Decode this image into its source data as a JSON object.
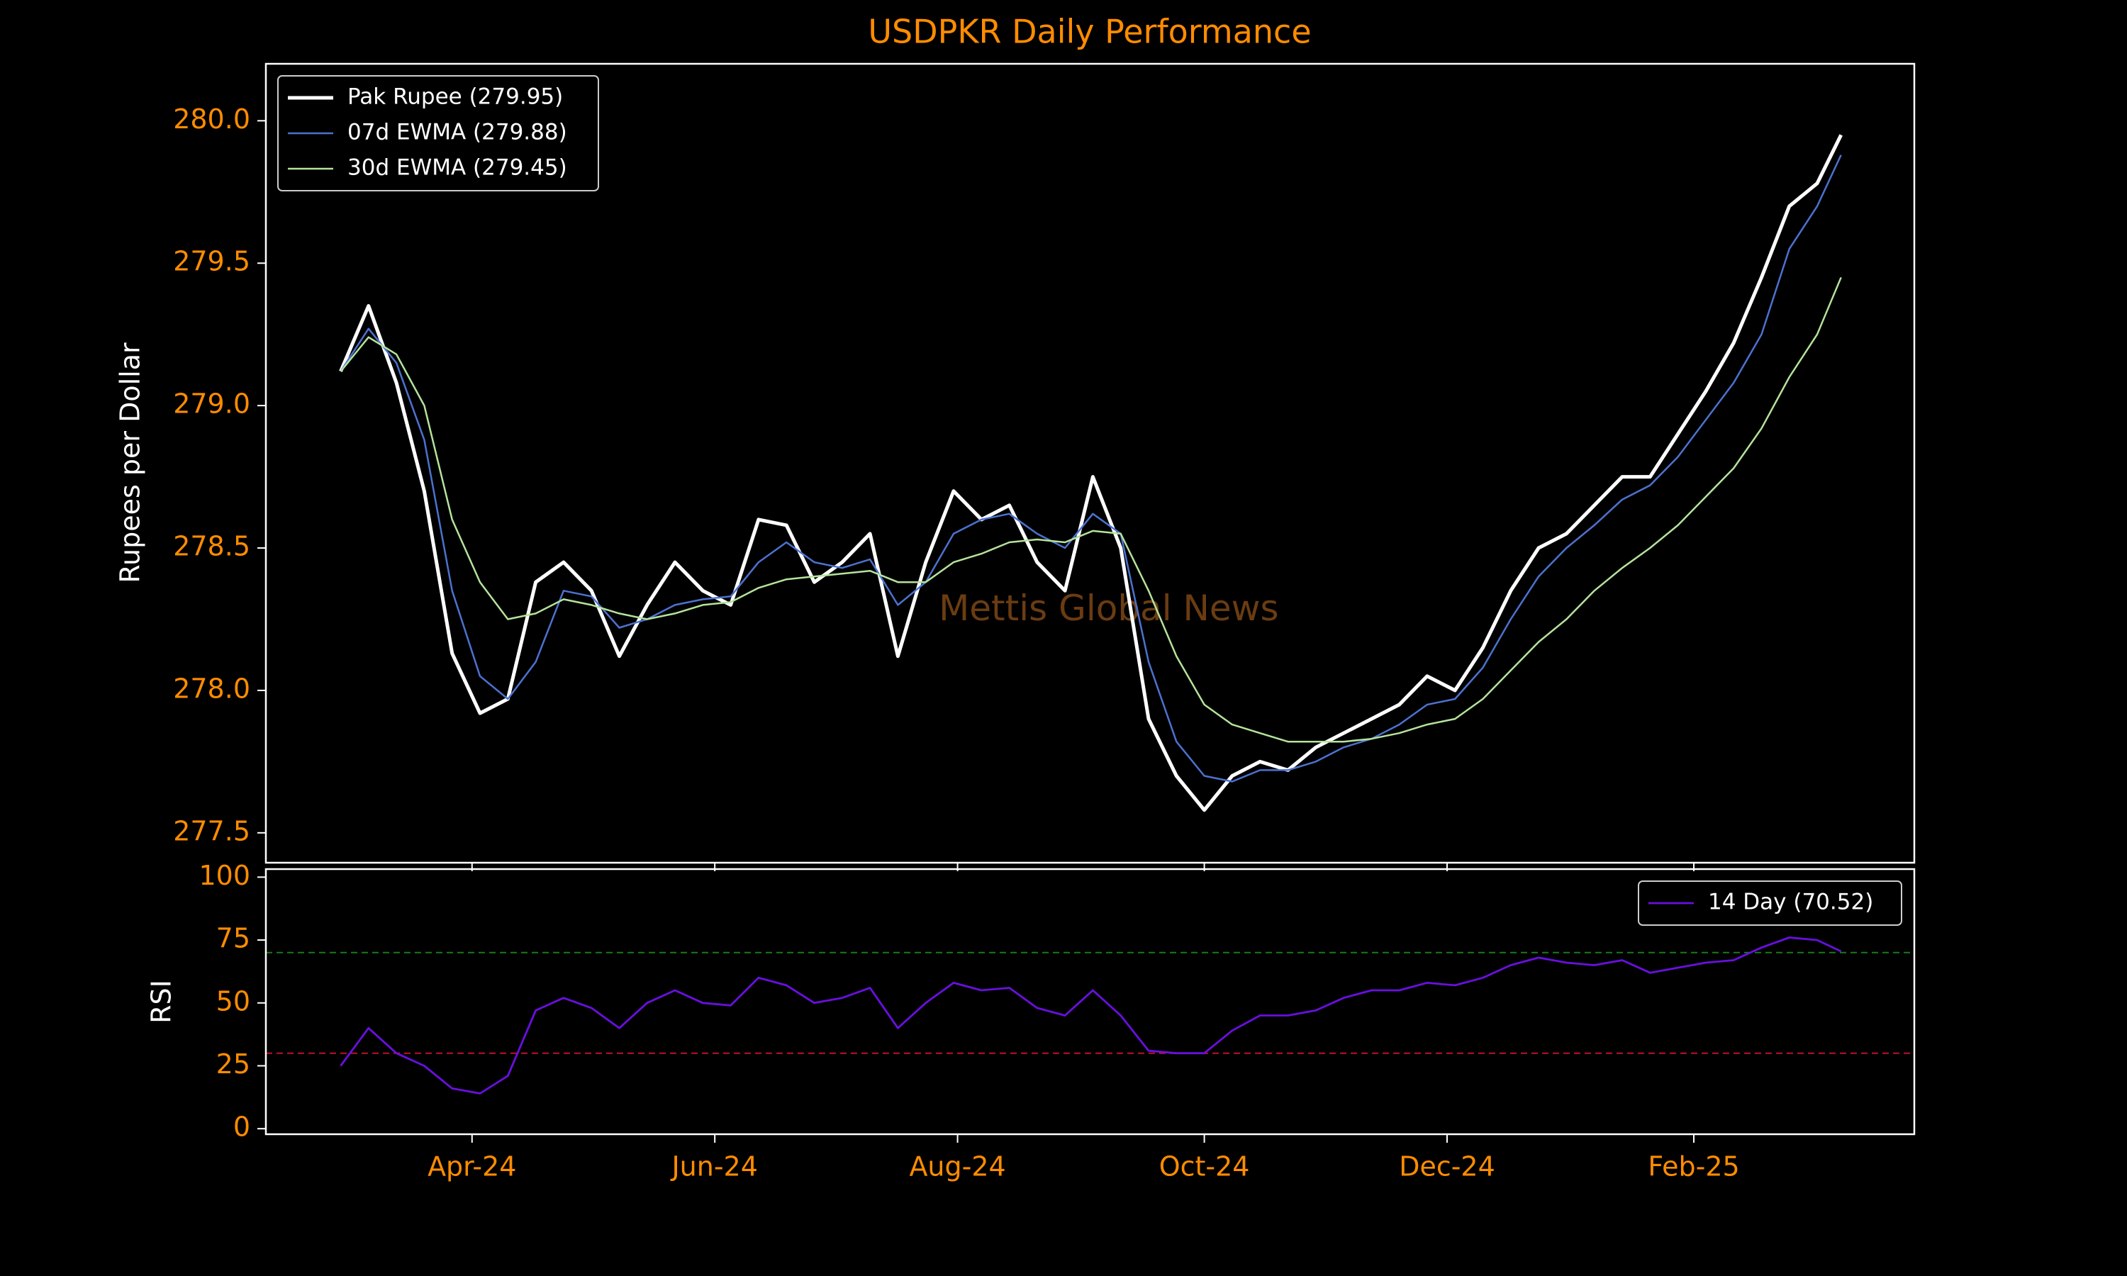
{
  "chart_data": [
    {
      "type": "line",
      "title": "USDPKR Daily Performance",
      "y_label": "Rupees per Dollar",
      "watermark": "Mettis Global News",
      "x": [
        27,
        34,
        41,
        48,
        55,
        62,
        69,
        76,
        83,
        90,
        97,
        104,
        111,
        118,
        125,
        132,
        139,
        146,
        153,
        160,
        167,
        174,
        181,
        188,
        195,
        202,
        209,
        216,
        223,
        230,
        237,
        244,
        251,
        258,
        265,
        272,
        279,
        286,
        293,
        300,
        307,
        314,
        321,
        328,
        335,
        342,
        349,
        356,
        363,
        370,
        377,
        384,
        391,
        398,
        404
      ],
      "xlim": [
        8.2,
        422.4
      ],
      "ylim": [
        277.395,
        280.2
      ],
      "yticks": [
        277.5,
        {
          "value": 278.0,
          "label": "278.0"
        },
        278.5,
        {
          "value": 279.0,
          "label": "279.0"
        },
        279.5,
        {
          "value": 280.0,
          "label": "280.0"
        }
      ],
      "legend": "upper left",
      "series": [
        {
          "name": "Pak Rupee (279.95)",
          "color": "#ffffff",
          "width": 5,
          "values": [
            279.12,
            279.35,
            279.08,
            278.7,
            278.13,
            277.92,
            277.97,
            278.38,
            278.45,
            278.35,
            278.12,
            278.3,
            278.45,
            278.35,
            278.3,
            278.6,
            278.58,
            278.38,
            278.45,
            278.55,
            278.12,
            278.45,
            278.7,
            278.6,
            278.65,
            278.45,
            278.35,
            278.75,
            278.5,
            277.9,
            277.7,
            277.58,
            277.7,
            277.75,
            277.72,
            277.8,
            277.85,
            277.9,
            277.95,
            278.05,
            278.0,
            278.15,
            278.35,
            278.5,
            278.55,
            278.65,
            278.75,
            278.75,
            278.9,
            279.05,
            279.22,
            279.45,
            279.7,
            279.78,
            279.95
          ]
        },
        {
          "name": "07d EWMA (279.88)",
          "color": "#4c72d0",
          "width": 2.5,
          "values": [
            279.12,
            279.27,
            279.15,
            278.88,
            278.35,
            278.05,
            277.97,
            278.1,
            278.35,
            278.33,
            278.22,
            278.25,
            278.3,
            278.32,
            278.33,
            278.45,
            278.52,
            278.45,
            278.43,
            278.46,
            278.3,
            278.38,
            278.55,
            278.6,
            278.62,
            278.55,
            278.5,
            278.62,
            278.55,
            278.1,
            277.82,
            277.7,
            277.68,
            277.72,
            277.72,
            277.75,
            277.8,
            277.83,
            277.88,
            277.95,
            277.97,
            278.08,
            278.25,
            278.4,
            278.5,
            278.58,
            278.67,
            278.72,
            278.82,
            278.95,
            279.08,
            279.25,
            279.55,
            279.7,
            279.88
          ]
        },
        {
          "name": "30d EWMA (279.45)",
          "color": "#b5e39b",
          "width": 2.5,
          "values": [
            279.12,
            279.24,
            279.18,
            279.0,
            278.6,
            278.38,
            278.25,
            278.27,
            278.32,
            278.3,
            278.27,
            278.25,
            278.27,
            278.3,
            278.31,
            278.36,
            278.39,
            278.4,
            278.41,
            278.42,
            278.38,
            278.38,
            278.45,
            278.48,
            278.52,
            278.53,
            278.52,
            278.56,
            278.55,
            278.35,
            278.12,
            277.95,
            277.88,
            277.85,
            277.82,
            277.82,
            277.82,
            277.83,
            277.85,
            277.88,
            277.9,
            277.97,
            278.07,
            278.17,
            278.25,
            278.35,
            278.43,
            278.5,
            278.58,
            278.68,
            278.78,
            278.92,
            279.1,
            279.25,
            279.45
          ]
        }
      ]
    },
    {
      "type": "line",
      "y_label": "RSI",
      "x": [
        27,
        34,
        41,
        48,
        55,
        62,
        69,
        76,
        83,
        90,
        97,
        104,
        111,
        118,
        125,
        132,
        139,
        146,
        153,
        160,
        167,
        174,
        181,
        188,
        195,
        202,
        209,
        216,
        223,
        230,
        237,
        244,
        251,
        258,
        265,
        272,
        279,
        286,
        293,
        300,
        307,
        314,
        321,
        328,
        335,
        342,
        349,
        356,
        363,
        370,
        377,
        384,
        391,
        398,
        404
      ],
      "xlim": [
        8.2,
        422.4
      ],
      "ylim": [
        -2.2,
        103.2
      ],
      "xticks": [
        {
          "value": 60,
          "label": "Apr-24"
        },
        {
          "value": 121,
          "label": "Jun-24"
        },
        {
          "value": 182,
          "label": "Aug-24"
        },
        {
          "value": 244,
          "label": "Oct-24"
        },
        {
          "value": 305,
          "label": "Dec-24"
        },
        {
          "value": 367,
          "label": "Feb-25"
        }
      ],
      "yticks": [
        0,
        25,
        50,
        75,
        100
      ],
      "hlines": [
        {
          "value": 70,
          "color": "#1a7a1a"
        },
        {
          "value": 30,
          "color": "#c0102a"
        }
      ],
      "legend": "upper right",
      "series": [
        {
          "name": "14 Day (70.52)",
          "color": "#6a0fe0",
          "width": 2.8,
          "values": [
            25,
            40,
            30,
            25,
            16,
            14,
            21,
            47,
            52,
            48,
            40,
            50,
            55,
            50,
            49,
            60,
            57,
            50,
            52,
            56,
            40,
            50,
            58,
            55,
            56,
            48,
            45,
            55,
            45,
            31,
            30,
            30,
            39,
            45,
            45,
            47,
            52,
            55,
            55,
            58,
            57,
            60,
            65,
            68,
            66,
            65,
            67,
            62,
            64,
            66,
            67,
            72,
            76,
            75,
            70.52
          ]
        }
      ]
    }
  ]
}
